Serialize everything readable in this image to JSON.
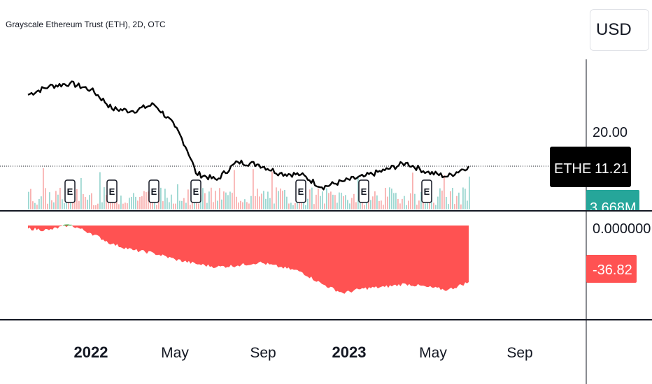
{
  "header": {
    "title": "Grayscale Ethereum Trust (ETH), 2D, OTC"
  },
  "currency_button": {
    "label": "USD"
  },
  "price_axis": {
    "tick_top": "20.00"
  },
  "last_price": {
    "ticker": "ETHE",
    "value": "11.21"
  },
  "volume_label": "3.668M",
  "indicator_axis": {
    "zero_label": "0.000000",
    "last_value_label": "-36.82"
  },
  "time_axis": {
    "labels": [
      "2022",
      "May",
      "Sep",
      "2023",
      "May",
      "Sep"
    ]
  },
  "earnings_marker_label": "E",
  "colors": {
    "price_line": "#000000",
    "indicator_negative": "#ff5252",
    "indicator_positive": "#4caf50",
    "volume_up": "#26a69a",
    "volume_down": "#ef5350",
    "last_price_badge": "#000000",
    "volume_badge": "#26a69a",
    "indicator_badge": "#ff5252"
  },
  "chart_data": [
    {
      "type": "line",
      "x": [
        "2021-10",
        "2021-11",
        "2021-12",
        "2022-01",
        "2022-02",
        "2022-03",
        "2022-04",
        "2022-05",
        "2022-06",
        "2022-07",
        "2022-08",
        "2022-09",
        "2022-10",
        "2022-11",
        "2022-12",
        "2023-01",
        "2023-02",
        "2023-03",
        "2023-04",
        "2023-05",
        "2023-06",
        "2023-07"
      ],
      "y": [
        35,
        40,
        42,
        38,
        28,
        27,
        30,
        21,
        10,
        9,
        12,
        11.5,
        10,
        9.8,
        8,
        8.8,
        9.5,
        10.5,
        11.8,
        10.2,
        9.5,
        11.21
      ],
      "earnings_markers_x": [
        "2021-12",
        "2022-02",
        "2022-04",
        "2022-06",
        "2022-11",
        "2023-02",
        "2023-05"
      ]
    },
    {
      "type": "area",
      "x": [
        "2021-10",
        "2021-11",
        "2021-12",
        "2022-01",
        "2022-02",
        "2022-03",
        "2022-04",
        "2022-05",
        "2022-06",
        "2022-07",
        "2022-08",
        "2022-09",
        "2022-10",
        "2022-11",
        "2022-12",
        "2023-01",
        "2023-02",
        "2023-03",
        "2023-04",
        "2023-05",
        "2023-06",
        "2023-07"
      ],
      "y": [
        -2,
        -3,
        0.5,
        -5,
        -12,
        -16,
        -18,
        -22,
        -25,
        -27,
        -26,
        -24,
        -27,
        -30,
        -38,
        -44,
        -41,
        -40,
        -38,
        -40,
        -42,
        -36.82
      ]
    }
  ]
}
